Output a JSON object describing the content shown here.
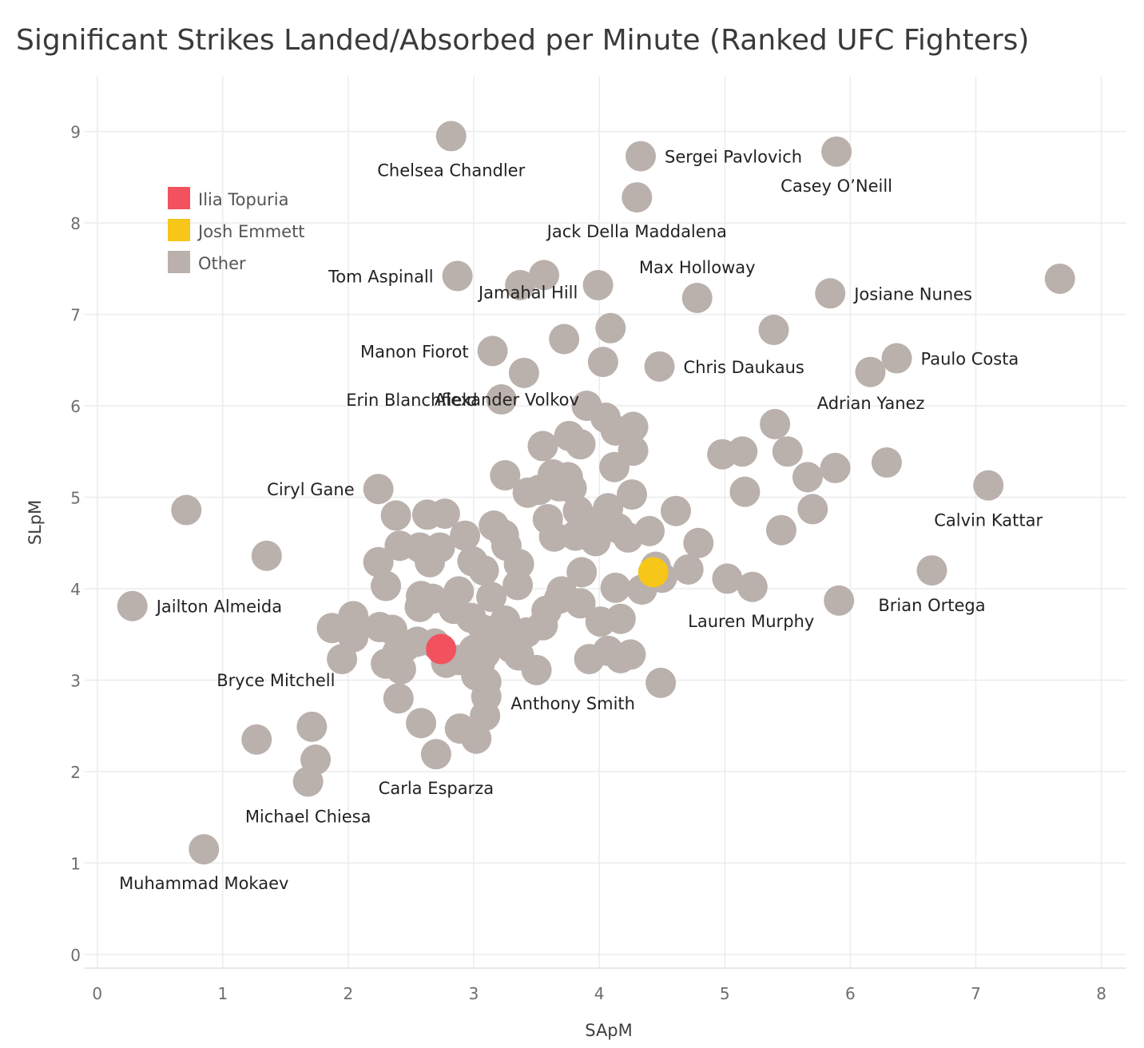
{
  "chart_data": {
    "type": "scatter",
    "title": "Significant Strikes Landed/Absorbed per Minute (Ranked UFC Fighters)",
    "xlabel": "SApM",
    "ylabel": "SLpM",
    "xlim": [
      -0.1,
      8.2
    ],
    "ylim": [
      -0.15,
      9.6
    ],
    "xticks": [
      0,
      1,
      2,
      3,
      4,
      5,
      6,
      7,
      8
    ],
    "yticks": [
      0,
      1,
      2,
      3,
      4,
      5,
      6,
      7,
      8,
      9
    ],
    "grid": true,
    "legend": {
      "position": "top-left",
      "entries": [
        {
          "label": "Ilia Topuria",
          "color": "#f2515e"
        },
        {
          "label": "Josh Emmett",
          "color": "#f6c618"
        },
        {
          "label": "Other",
          "color": "#bab0ac"
        }
      ]
    },
    "series": [
      {
        "name": "Other",
        "color": "#bab0ac",
        "points": [
          {
            "x": 2.82,
            "y": 8.95,
            "label": "Chelsea Chandler",
            "label_pos": "below"
          },
          {
            "x": 4.33,
            "y": 8.73,
            "label": "Sergei Pavlovich",
            "label_pos": "right"
          },
          {
            "x": 5.89,
            "y": 8.78,
            "label": "Casey O’Neill",
            "label_pos": "below"
          },
          {
            "x": 4.3,
            "y": 8.28,
            "label": "Jack Della Maddalena",
            "label_pos": "below"
          },
          {
            "x": 2.87,
            "y": 7.42,
            "label": "Tom Aspinall",
            "label_pos": "left"
          },
          {
            "x": 3.56,
            "y": 7.43
          },
          {
            "x": 3.37,
            "y": 7.32
          },
          {
            "x": 3.99,
            "y": 7.32
          },
          {
            "x": 4.78,
            "y": 7.18,
            "label": "Max Holloway",
            "label_pos": "above"
          },
          {
            "x": 5.84,
            "y": 7.23,
            "label": "Josiane Nunes",
            "label_pos": "right"
          },
          {
            "x": 7.67,
            "y": 7.39
          },
          {
            "x": 3.72,
            "y": 6.73,
            "label": "Jamahal Hill",
            "label_pos": "aboveleft"
          },
          {
            "x": 4.09,
            "y": 6.85
          },
          {
            "x": 5.39,
            "y": 6.83
          },
          {
            "x": 3.15,
            "y": 6.6,
            "label": "Manon Fiorot",
            "label_pos": "left"
          },
          {
            "x": 4.03,
            "y": 6.48
          },
          {
            "x": 3.4,
            "y": 6.36
          },
          {
            "x": 4.48,
            "y": 6.43,
            "label": "Chris Daukaus",
            "label_pos": "right"
          },
          {
            "x": 6.16,
            "y": 6.37
          },
          {
            "x": 6.37,
            "y": 6.52,
            "label": "Paulo Costa",
            "label_pos": "right"
          },
          {
            "x": 3.22,
            "y": 6.07,
            "label": "Erin Blanchfield",
            "label_pos": "left"
          },
          {
            "x": 3.9,
            "y": 6.0
          },
          {
            "x": 4.05,
            "y": 5.87
          },
          {
            "x": 4.13,
            "y": 5.73
          },
          {
            "x": 4.27,
            "y": 5.77
          },
          {
            "x": 5.4,
            "y": 5.8,
            "label": "Adrian Yanez",
            "label_pos": "aboveright"
          },
          {
            "x": 3.76,
            "y": 5.67
          },
          {
            "x": 3.85,
            "y": 5.58
          },
          {
            "x": 3.55,
            "y": 5.56,
            "label": "Alexander Volkov",
            "label_pos": "aboveleft"
          },
          {
            "x": 4.27,
            "y": 5.51
          },
          {
            "x": 4.98,
            "y": 5.47
          },
          {
            "x": 5.14,
            "y": 5.5
          },
          {
            "x": 5.5,
            "y": 5.5
          },
          {
            "x": 6.29,
            "y": 5.38
          },
          {
            "x": 4.12,
            "y": 5.33
          },
          {
            "x": 5.88,
            "y": 5.32
          },
          {
            "x": 3.25,
            "y": 5.24
          },
          {
            "x": 3.63,
            "y": 5.25
          },
          {
            "x": 3.75,
            "y": 5.22
          },
          {
            "x": 5.66,
            "y": 5.22
          },
          {
            "x": 7.1,
            "y": 5.13,
            "label": "Calvin Kattar",
            "label_pos": "belowcenter"
          },
          {
            "x": 3.68,
            "y": 5.12
          },
          {
            "x": 3.78,
            "y": 5.1
          },
          {
            "x": 2.24,
            "y": 5.09,
            "label": "Ciryl Gane",
            "label_pos": "left"
          },
          {
            "x": 3.43,
            "y": 5.05
          },
          {
            "x": 3.52,
            "y": 5.08
          },
          {
            "x": 5.16,
            "y": 5.06
          },
          {
            "x": 4.26,
            "y": 5.03
          },
          {
            "x": 0.71,
            "y": 4.86
          },
          {
            "x": 3.83,
            "y": 4.85
          },
          {
            "x": 4.07,
            "y": 4.88
          },
          {
            "x": 4.61,
            "y": 4.85
          },
          {
            "x": 5.7,
            "y": 4.87
          },
          {
            "x": 2.38,
            "y": 4.8
          },
          {
            "x": 2.63,
            "y": 4.81
          },
          {
            "x": 2.77,
            "y": 4.82
          },
          {
            "x": 3.59,
            "y": 4.76
          },
          {
            "x": 3.92,
            "y": 4.73
          },
          {
            "x": 3.16,
            "y": 4.69
          },
          {
            "x": 4.15,
            "y": 4.66
          },
          {
            "x": 4.4,
            "y": 4.63
          },
          {
            "x": 5.45,
            "y": 4.64
          },
          {
            "x": 2.93,
            "y": 4.58
          },
          {
            "x": 3.24,
            "y": 4.59
          },
          {
            "x": 3.64,
            "y": 4.57
          },
          {
            "x": 3.81,
            "y": 4.58
          },
          {
            "x": 4.23,
            "y": 4.56
          },
          {
            "x": 3.97,
            "y": 4.52
          },
          {
            "x": 4.79,
            "y": 4.5
          },
          {
            "x": 2.41,
            "y": 4.47
          },
          {
            "x": 2.57,
            "y": 4.45
          },
          {
            "x": 2.73,
            "y": 4.45
          },
          {
            "x": 3.26,
            "y": 4.47
          },
          {
            "x": 1.35,
            "y": 4.36
          },
          {
            "x": 2.24,
            "y": 4.29
          },
          {
            "x": 2.65,
            "y": 4.29
          },
          {
            "x": 2.99,
            "y": 4.3
          },
          {
            "x": 3.36,
            "y": 4.27
          },
          {
            "x": 3.08,
            "y": 4.2
          },
          {
            "x": 4.45,
            "y": 4.24
          },
          {
            "x": 4.71,
            "y": 4.21
          },
          {
            "x": 6.65,
            "y": 4.2,
            "label": "Brian Ortega",
            "label_pos": "belowcenter"
          },
          {
            "x": 3.86,
            "y": 4.18
          },
          {
            "x": 5.02,
            "y": 4.11
          },
          {
            "x": 4.5,
            "y": 4.12
          },
          {
            "x": 2.3,
            "y": 4.03
          },
          {
            "x": 3.35,
            "y": 4.04
          },
          {
            "x": 4.13,
            "y": 4.01
          },
          {
            "x": 4.34,
            "y": 3.99
          },
          {
            "x": 5.22,
            "y": 4.02
          },
          {
            "x": 2.88,
            "y": 3.97
          },
          {
            "x": 3.7,
            "y": 3.97
          },
          {
            "x": 2.58,
            "y": 3.92
          },
          {
            "x": 2.67,
            "y": 3.89
          },
          {
            "x": 3.14,
            "y": 3.91
          },
          {
            "x": 3.68,
            "y": 3.89
          },
          {
            "x": 5.91,
            "y": 3.87,
            "label": "Lauren Murphy",
            "label_pos": "belowleft"
          },
          {
            "x": 3.85,
            "y": 3.84
          },
          {
            "x": 0.28,
            "y": 3.81,
            "label": "Jailton Almeida",
            "label_pos": "right"
          },
          {
            "x": 2.57,
            "y": 3.8
          },
          {
            "x": 2.84,
            "y": 3.78
          },
          {
            "x": 3.58,
            "y": 3.76
          },
          {
            "x": 2.04,
            "y": 3.7
          },
          {
            "x": 2.98,
            "y": 3.68
          },
          {
            "x": 4.17,
            "y": 3.67
          },
          {
            "x": 3.25,
            "y": 3.65
          },
          {
            "x": 4.01,
            "y": 3.64
          },
          {
            "x": 3.55,
            "y": 3.6
          },
          {
            "x": 1.87,
            "y": 3.57
          },
          {
            "x": 2.25,
            "y": 3.58
          },
          {
            "x": 2.35,
            "y": 3.55
          },
          {
            "x": 3.08,
            "y": 3.55
          },
          {
            "x": 3.42,
            "y": 3.52
          },
          {
            "x": 2.04,
            "y": 3.47
          },
          {
            "x": 3.18,
            "y": 3.45
          },
          {
            "x": 2.55,
            "y": 3.42
          },
          {
            "x": 2.69,
            "y": 3.4
          },
          {
            "x": 2.46,
            "y": 3.37
          },
          {
            "x": 3.3,
            "y": 3.35
          },
          {
            "x": 3.0,
            "y": 3.33
          },
          {
            "x": 4.07,
            "y": 3.32
          },
          {
            "x": 2.39,
            "y": 3.3
          },
          {
            "x": 3.09,
            "y": 3.29
          },
          {
            "x": 3.36,
            "y": 3.27
          },
          {
            "x": 4.25,
            "y": 3.28
          },
          {
            "x": 1.95,
            "y": 3.23
          },
          {
            "x": 3.92,
            "y": 3.23
          },
          {
            "x": 4.17,
            "y": 3.24
          },
          {
            "x": 2.78,
            "y": 3.19
          },
          {
            "x": 2.88,
            "y": 3.22
          },
          {
            "x": 3.05,
            "y": 3.19
          },
          {
            "x": 2.3,
            "y": 3.18
          },
          {
            "x": 2.42,
            "y": 3.12
          },
          {
            "x": 3.5,
            "y": 3.11
          },
          {
            "x": 3.02,
            "y": 3.05
          },
          {
            "x": 3.1,
            "y": 2.98
          },
          {
            "x": 4.49,
            "y": 2.97,
            "label": "Anthony Smith",
            "label_pos": "belowleft"
          },
          {
            "x": 2.4,
            "y": 2.8
          },
          {
            "x": 3.1,
            "y": 2.82
          },
          {
            "x": 3.09,
            "y": 2.61
          },
          {
            "x": 2.58,
            "y": 2.53
          },
          {
            "x": 1.71,
            "y": 2.49,
            "label": "Bryce Mitchell",
            "label_pos": "aboveleft"
          },
          {
            "x": 2.89,
            "y": 2.47
          },
          {
            "x": 1.27,
            "y": 2.35
          },
          {
            "x": 3.02,
            "y": 2.36
          },
          {
            "x": 2.7,
            "y": 2.19,
            "label": "Carla Esparza",
            "label_pos": "below"
          },
          {
            "x": 1.74,
            "y": 2.13
          },
          {
            "x": 1.68,
            "y": 1.89,
            "label": "Michael Chiesa",
            "label_pos": "belowright"
          },
          {
            "x": 0.85,
            "y": 1.15,
            "label": "Muhammad Mokaev",
            "label_pos": "below"
          }
        ]
      },
      {
        "name": "Josh Emmett",
        "color": "#f6c618",
        "points": [
          {
            "x": 4.43,
            "y": 4.18
          }
        ]
      },
      {
        "name": "Ilia Topuria",
        "color": "#f2515e",
        "points": [
          {
            "x": 2.74,
            "y": 3.34
          }
        ]
      }
    ]
  }
}
